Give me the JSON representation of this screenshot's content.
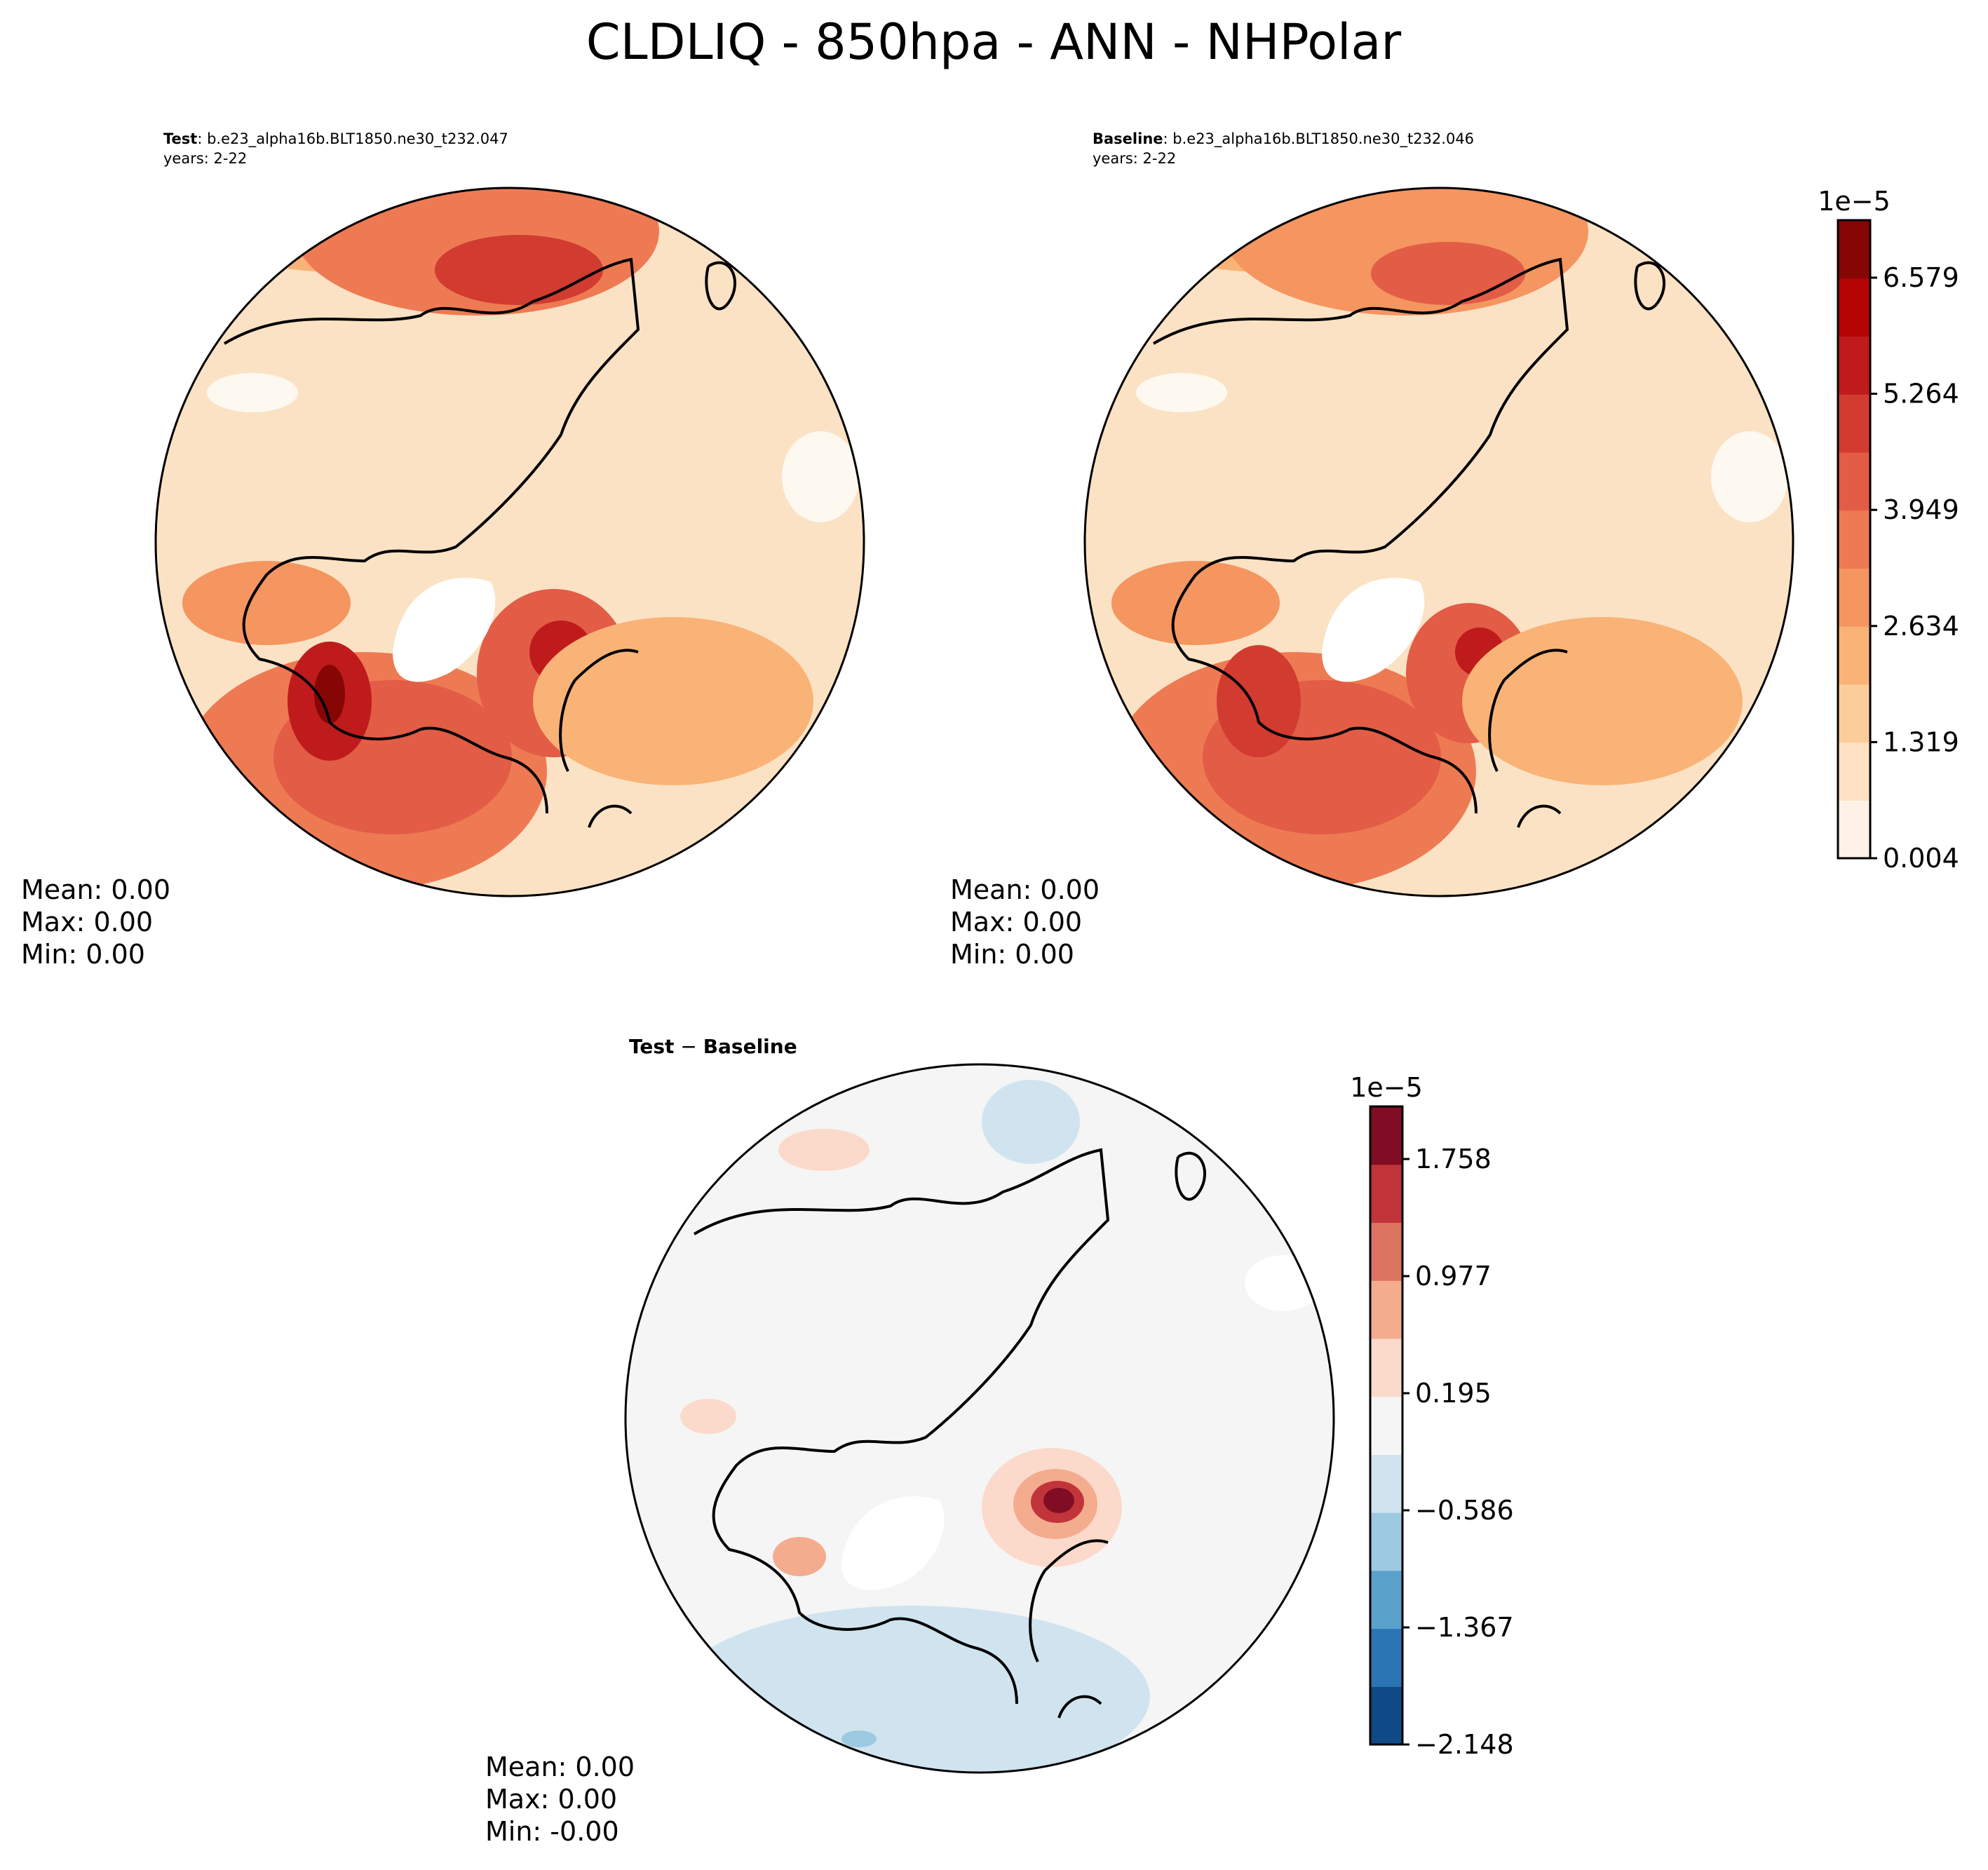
{
  "chart_data": {
    "type": "heatmap",
    "title": "CLDLIQ - 850hpa - ANN - NHPolar",
    "panels": [
      {
        "label_bold": "Test",
        "label_text": ": b.e23_alpha16b.BLT1850.ne30_t232.047",
        "years": "years: 2-22",
        "stats": {
          "mean": "Mean:  0.00",
          "max": "Max:  0.00",
          "min": "Min:  0.00"
        }
      },
      {
        "label_bold": "Baseline",
        "label_text": ": b.e23_alpha16b.BLT1850.ne30_t232.046",
        "years": "years: 2-22",
        "stats": {
          "mean": "Mean:  0.00",
          "max": "Max:  0.00",
          "min": "Min:  0.00"
        }
      },
      {
        "label_bold": "Test",
        "label_mid": " − ",
        "label_bold2": "Baseline",
        "stats": {
          "mean": "Mean:  0.00",
          "max": "Max:  0.00",
          "min": "Min: -0.00"
        }
      }
    ],
    "colorbars": [
      {
        "scale_label": "1e−5",
        "ticks": [
          "0.004",
          "1.319",
          "2.634",
          "3.949",
          "5.264",
          "6.579"
        ],
        "colors": [
          "#fdf2e5",
          "#fde2c3",
          "#fbcd9a",
          "#f9b377",
          "#f59560",
          "#ee7a53",
          "#e25c46",
          "#d13b30",
          "#c01b1c",
          "#b40404",
          "#860606"
        ]
      },
      {
        "scale_label": "1e−5",
        "ticks": [
          "−2.148",
          "−1.367",
          "−0.586",
          "0.195",
          "0.977",
          "1.758"
        ],
        "colors": [
          "#0f4a86",
          "#2c75b4",
          "#5aa1cc",
          "#9dc9e1",
          "#d0e4f0",
          "#f5f5f5",
          "#fbdacb",
          "#f4ac8f",
          "#dd7461",
          "#c1343a",
          "#810d24"
        ]
      }
    ]
  }
}
